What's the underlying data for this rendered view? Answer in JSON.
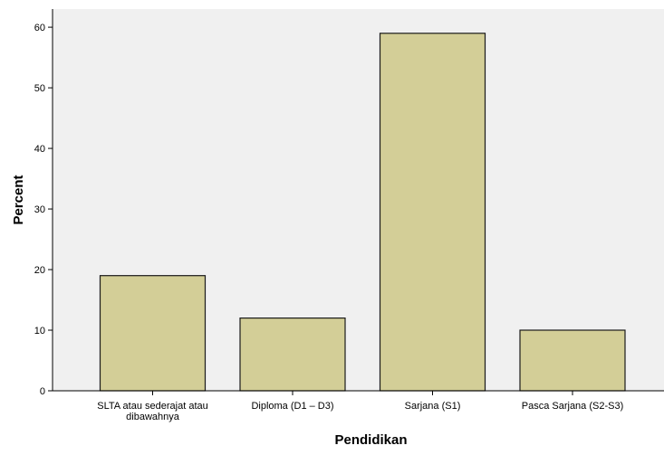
{
  "colors": {
    "plot_background": "#f0f0f0",
    "bar_fill": "#d3ce97",
    "bar_stroke": "#1a1a1a",
    "axis": "#000000"
  },
  "chart_data": {
    "type": "bar",
    "title": "",
    "xlabel": "Pendidikan",
    "ylabel": "Percent",
    "categories": [
      [
        "SLTA atau sederajat atau",
        "dibawahnya"
      ],
      [
        "Diploma (D1 – D3)"
      ],
      [
        "Sarjana (S1)"
      ],
      [
        "Pasca Sarjana (S2-S3)"
      ]
    ],
    "values": [
      19,
      12,
      59,
      10
    ],
    "ylim": [
      0,
      63
    ],
    "yticks": [
      0,
      10,
      20,
      30,
      40,
      50,
      60
    ],
    "grid": false,
    "legend": "none"
  }
}
